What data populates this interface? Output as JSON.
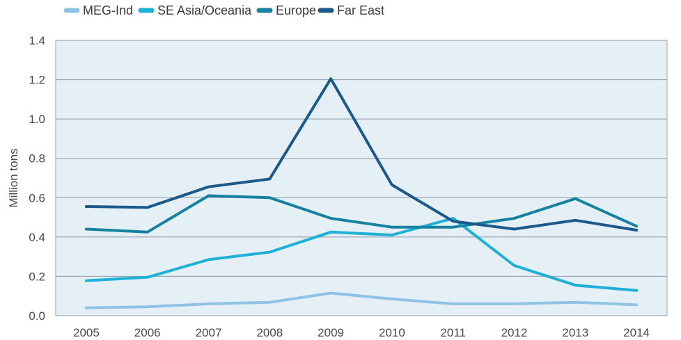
{
  "chart_data": {
    "type": "line",
    "title": "",
    "xlabel": "",
    "ylabel": "Million tons",
    "x": [
      "2005",
      "2006",
      "2007",
      "2008",
      "2009",
      "2010",
      "2011",
      "2012",
      "2013",
      "2014"
    ],
    "ylim": [
      0,
      1.4
    ],
    "yticks": [
      "0.0",
      "0.2",
      "0.4",
      "0.6",
      "0.8",
      "1.0",
      "1.2",
      "1.4"
    ],
    "grid": true,
    "legend_position": "top-left",
    "plot_background": "#e5eff6",
    "series": [
      {
        "name": "MEG-Ind",
        "color": "#8ec3e6",
        "values": [
          0.04,
          0.045,
          0.06,
          0.068,
          0.115,
          0.085,
          0.06,
          0.06,
          0.068,
          0.055
        ]
      },
      {
        "name": "SE Asia/Oceania",
        "color": "#1fb0d8",
        "values": [
          0.178,
          0.195,
          0.285,
          0.323,
          0.425,
          0.41,
          0.495,
          0.255,
          0.155,
          0.128
        ]
      },
      {
        "name": "Europe",
        "color": "#17829f",
        "values": [
          0.44,
          0.425,
          0.61,
          0.6,
          0.495,
          0.45,
          0.45,
          0.495,
          0.595,
          0.455
        ]
      },
      {
        "name": "Far East",
        "color": "#1a5989",
        "values": [
          0.555,
          0.55,
          0.655,
          0.695,
          1.205,
          0.665,
          0.48,
          0.44,
          0.485,
          0.435
        ]
      }
    ]
  }
}
